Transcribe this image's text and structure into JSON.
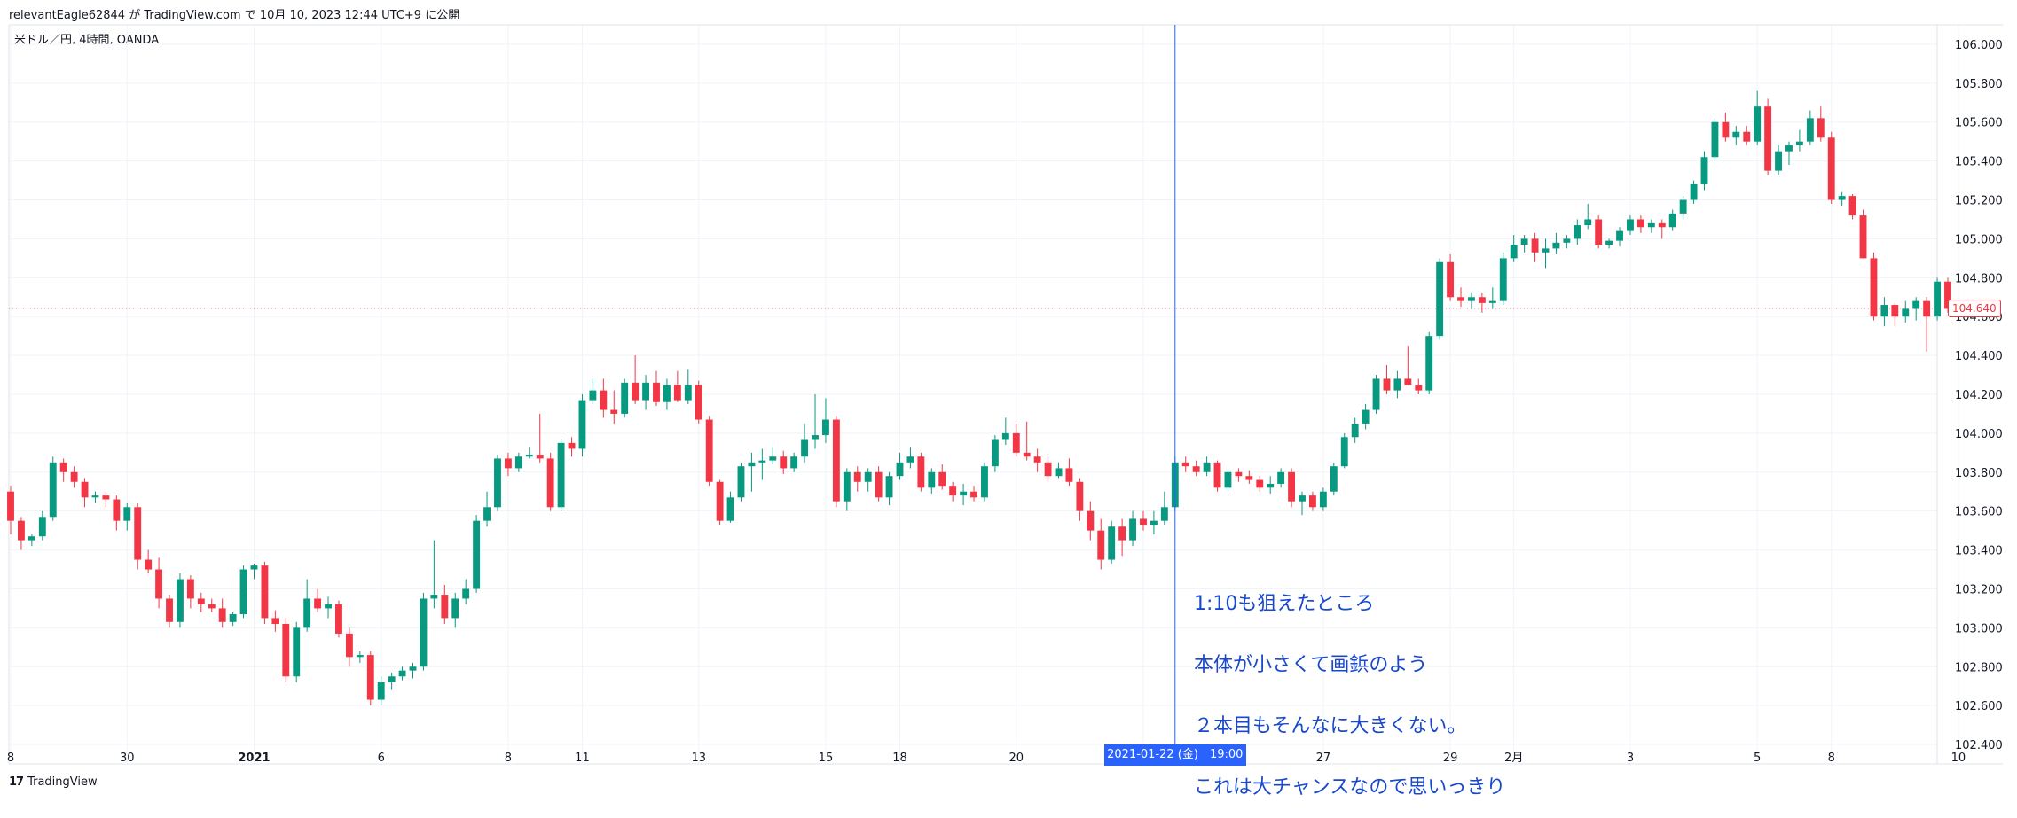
{
  "header": {
    "text": "relevantEagle62844 が TradingView.com で 10月 10, 2023 12:44 UTC+9 に公開"
  },
  "symbol": {
    "text": "米ドル／円, 4時間, OANDA"
  },
  "footer": {
    "brand": "TradingView",
    "logo_glyph": "17"
  },
  "annotation": {
    "lines": [
      "1:10も狙えたところ",
      "本体が小さくて画鋲のよう",
      "２本目もそんなに大きくない。",
      "これは大チャンスなので思いっきり"
    ],
    "color": "#1848cc"
  },
  "cursor": {
    "label": "2021-01-22 (金)　19:00"
  },
  "last_price": {
    "label": "104.640",
    "color": "#f23645"
  },
  "colors": {
    "up": "#089981",
    "down": "#f23645",
    "grid": "#f0f3fa",
    "cursor": "#2962ff"
  },
  "chart_data": {
    "type": "candlestick",
    "title": "",
    "y_axis": {
      "position": "right",
      "range": [
        102.3,
        106.1
      ],
      "tick_labels": [
        "106.000",
        "105.800",
        "105.600",
        "105.400",
        "105.200",
        "105.000",
        "104.800",
        "104.600",
        "104.400",
        "104.200",
        "104.000",
        "103.800",
        "103.600",
        "103.400",
        "103.200",
        "103.000",
        "102.800",
        "102.600",
        "102.400"
      ],
      "tick_values": [
        106.0,
        105.8,
        105.6,
        105.4,
        105.2,
        105.0,
        104.8,
        104.6,
        104.4,
        104.2,
        104.0,
        103.8,
        103.6,
        103.4,
        103.2,
        103.0,
        102.8,
        102.6,
        102.4
      ]
    },
    "x_axis": {
      "tick_labels": [
        "8",
        "30",
        "2021",
        "6",
        "8",
        "11",
        "13",
        "15",
        "18",
        "20",
        "22",
        "27",
        "29",
        "2月",
        "3",
        "5",
        "8",
        "10"
      ],
      "tick_bar_index": [
        0,
        11,
        23,
        35,
        47,
        54,
        65,
        77,
        84,
        95,
        107,
        124,
        136,
        142,
        153,
        165,
        172,
        184
      ],
      "bold_labels": [
        "2021"
      ]
    },
    "cursor_bar_index": 110,
    "grid": true,
    "ohlc": [
      [
        103.7,
        103.73,
        103.48,
        103.55
      ],
      [
        103.55,
        103.57,
        103.4,
        103.45
      ],
      [
        103.45,
        103.48,
        103.42,
        103.47
      ],
      [
        103.47,
        103.6,
        103.45,
        103.57
      ],
      [
        103.57,
        103.88,
        103.55,
        103.85
      ],
      [
        103.85,
        103.87,
        103.75,
        103.8
      ],
      [
        103.8,
        103.83,
        103.72,
        103.75
      ],
      [
        103.75,
        103.77,
        103.62,
        103.67
      ],
      [
        103.67,
        103.7,
        103.64,
        103.68
      ],
      [
        103.68,
        103.7,
        103.62,
        103.66
      ],
      [
        103.66,
        103.68,
        103.5,
        103.55
      ],
      [
        103.55,
        103.64,
        103.5,
        103.62
      ],
      [
        103.62,
        103.64,
        103.3,
        103.35
      ],
      [
        103.35,
        103.4,
        103.28,
        103.3
      ],
      [
        103.3,
        103.36,
        103.1,
        103.15
      ],
      [
        103.15,
        103.17,
        103.0,
        103.03
      ],
      [
        103.03,
        103.28,
        103.0,
        103.25
      ],
      [
        103.25,
        103.27,
        103.1,
        103.15
      ],
      [
        103.15,
        103.18,
        103.08,
        103.12
      ],
      [
        103.12,
        103.15,
        103.08,
        103.1
      ],
      [
        103.1,
        103.15,
        103.0,
        103.03
      ],
      [
        103.03,
        103.08,
        103.01,
        103.07
      ],
      [
        103.07,
        103.32,
        103.05,
        103.3
      ],
      [
        103.3,
        103.33,
        103.25,
        103.32
      ],
      [
        103.32,
        103.34,
        103.02,
        103.05
      ],
      [
        103.05,
        103.09,
        102.98,
        103.02
      ],
      [
        103.02,
        103.05,
        102.72,
        102.75
      ],
      [
        102.75,
        103.03,
        102.72,
        103.0
      ],
      [
        103.0,
        103.25,
        102.98,
        103.15
      ],
      [
        103.15,
        103.2,
        103.08,
        103.1
      ],
      [
        103.1,
        103.16,
        103.05,
        103.12
      ],
      [
        103.12,
        103.14,
        102.95,
        102.97
      ],
      [
        102.97,
        103.0,
        102.8,
        102.85
      ],
      [
        102.85,
        102.88,
        102.82,
        102.86
      ],
      [
        102.86,
        102.88,
        102.6,
        102.63
      ],
      [
        102.63,
        102.75,
        102.6,
        102.72
      ],
      [
        102.72,
        102.77,
        102.68,
        102.75
      ],
      [
        102.75,
        102.8,
        102.73,
        102.78
      ],
      [
        102.78,
        102.82,
        102.74,
        102.8
      ],
      [
        102.8,
        103.18,
        102.78,
        103.15
      ],
      [
        103.15,
        103.45,
        103.1,
        103.17
      ],
      [
        103.17,
        103.22,
        103.02,
        103.05
      ],
      [
        103.05,
        103.18,
        103.0,
        103.15
      ],
      [
        103.15,
        103.25,
        103.12,
        103.2
      ],
      [
        103.2,
        103.58,
        103.18,
        103.55
      ],
      [
        103.55,
        103.7,
        103.52,
        103.62
      ],
      [
        103.62,
        103.89,
        103.6,
        103.87
      ],
      [
        103.87,
        103.9,
        103.78,
        103.82
      ],
      [
        103.82,
        103.9,
        103.8,
        103.88
      ],
      [
        103.88,
        103.93,
        103.87,
        103.89
      ],
      [
        103.89,
        104.1,
        103.85,
        103.87
      ],
      [
        103.87,
        103.9,
        103.6,
        103.62
      ],
      [
        103.62,
        103.97,
        103.6,
        103.95
      ],
      [
        103.95,
        103.98,
        103.88,
        103.92
      ],
      [
        103.92,
        104.2,
        103.88,
        104.17
      ],
      [
        104.17,
        104.28,
        104.15,
        104.22
      ],
      [
        104.22,
        104.28,
        104.08,
        104.12
      ],
      [
        104.12,
        104.22,
        104.05,
        104.1
      ],
      [
        104.1,
        104.28,
        104.08,
        104.26
      ],
      [
        104.26,
        104.4,
        104.15,
        104.17
      ],
      [
        104.17,
        104.3,
        104.12,
        104.26
      ],
      [
        104.26,
        104.32,
        104.14,
        104.16
      ],
      [
        104.16,
        104.28,
        104.12,
        104.25
      ],
      [
        104.25,
        104.32,
        104.16,
        104.17
      ],
      [
        104.17,
        104.33,
        104.15,
        104.25
      ],
      [
        104.25,
        104.27,
        104.05,
        104.07
      ],
      [
        104.07,
        104.09,
        103.73,
        103.75
      ],
      [
        103.75,
        103.76,
        103.53,
        103.55
      ],
      [
        103.55,
        103.7,
        103.54,
        103.67
      ],
      [
        103.67,
        103.85,
        103.65,
        103.83
      ],
      [
        103.83,
        103.9,
        103.7,
        103.85
      ],
      [
        103.85,
        103.92,
        103.76,
        103.86
      ],
      [
        103.86,
        103.93,
        103.84,
        103.88
      ],
      [
        103.88,
        103.91,
        103.79,
        103.82
      ],
      [
        103.82,
        103.9,
        103.8,
        103.88
      ],
      [
        103.88,
        104.05,
        103.85,
        103.97
      ],
      [
        103.97,
        104.2,
        103.92,
        103.99
      ],
      [
        103.99,
        104.18,
        103.95,
        104.07
      ],
      [
        104.07,
        104.09,
        103.62,
        103.65
      ],
      [
        103.65,
        103.82,
        103.6,
        103.8
      ],
      [
        103.8,
        103.83,
        103.7,
        103.75
      ],
      [
        103.75,
        103.82,
        103.7,
        103.8
      ],
      [
        103.8,
        103.83,
        103.65,
        103.67
      ],
      [
        103.67,
        103.8,
        103.63,
        103.78
      ],
      [
        103.78,
        103.9,
        103.76,
        103.85
      ],
      [
        103.85,
        103.93,
        103.82,
        103.88
      ],
      [
        103.88,
        103.9,
        103.7,
        103.72
      ],
      [
        103.72,
        103.82,
        103.69,
        103.8
      ],
      [
        103.8,
        103.84,
        103.71,
        103.73
      ],
      [
        103.73,
        103.75,
        103.65,
        103.68
      ],
      [
        103.68,
        103.74,
        103.63,
        103.7
      ],
      [
        103.7,
        103.73,
        103.65,
        103.67
      ],
      [
        103.67,
        103.85,
        103.65,
        103.83
      ],
      [
        103.83,
        103.99,
        103.8,
        103.97
      ],
      [
        103.97,
        104.08,
        103.94,
        104.0
      ],
      [
        104.0,
        104.05,
        103.88,
        103.9
      ],
      [
        103.9,
        104.06,
        103.86,
        103.88
      ],
      [
        103.88,
        103.92,
        103.8,
        103.85
      ],
      [
        103.85,
        103.88,
        103.75,
        103.78
      ],
      [
        103.78,
        103.85,
        103.77,
        103.82
      ],
      [
        103.82,
        103.87,
        103.73,
        103.75
      ],
      [
        103.75,
        103.77,
        103.55,
        103.6
      ],
      [
        103.6,
        103.65,
        103.45,
        103.5
      ],
      [
        103.5,
        103.56,
        103.3,
        103.35
      ],
      [
        103.35,
        103.55,
        103.33,
        103.52
      ],
      [
        103.52,
        103.56,
        103.37,
        103.45
      ],
      [
        103.45,
        103.6,
        103.42,
        103.56
      ],
      [
        103.56,
        103.6,
        103.5,
        103.53
      ],
      [
        103.53,
        103.6,
        103.48,
        103.55
      ],
      [
        103.55,
        103.7,
        103.53,
        103.62
      ],
      [
        103.62,
        103.88,
        103.6,
        103.85
      ],
      [
        103.85,
        103.88,
        103.8,
        103.83
      ],
      [
        103.83,
        103.86,
        103.78,
        103.8
      ],
      [
        103.8,
        103.88,
        103.78,
        103.85
      ],
      [
        103.85,
        103.86,
        103.7,
        103.72
      ],
      [
        103.72,
        103.82,
        103.7,
        103.8
      ],
      [
        103.8,
        103.82,
        103.75,
        103.78
      ],
      [
        103.78,
        103.81,
        103.74,
        103.76
      ],
      [
        103.76,
        103.78,
        103.7,
        103.72
      ],
      [
        103.72,
        103.78,
        103.69,
        103.74
      ],
      [
        103.74,
        103.82,
        103.72,
        103.8
      ],
      [
        103.8,
        103.82,
        103.62,
        103.65
      ],
      [
        103.65,
        103.7,
        103.58,
        103.68
      ],
      [
        103.68,
        103.7,
        103.6,
        103.62
      ],
      [
        103.62,
        103.72,
        103.6,
        103.7
      ],
      [
        103.7,
        103.85,
        103.68,
        103.83
      ],
      [
        103.83,
        104.0,
        103.82,
        103.98
      ],
      [
        103.98,
        104.08,
        103.95,
        104.05
      ],
      [
        104.05,
        104.15,
        104.02,
        104.12
      ],
      [
        104.12,
        104.3,
        104.1,
        104.28
      ],
      [
        104.28,
        104.35,
        104.2,
        104.22
      ],
      [
        104.22,
        104.32,
        104.18,
        104.28
      ],
      [
        104.28,
        104.45,
        104.25,
        104.25
      ],
      [
        104.25,
        104.28,
        104.2,
        104.22
      ],
      [
        104.22,
        104.52,
        104.2,
        104.5
      ],
      [
        104.5,
        104.9,
        104.48,
        104.88
      ],
      [
        104.88,
        104.92,
        104.68,
        104.7
      ],
      [
        104.7,
        104.75,
        104.65,
        104.68
      ],
      [
        104.68,
        104.72,
        104.64,
        104.7
      ],
      [
        104.7,
        104.72,
        104.62,
        104.67
      ],
      [
        104.67,
        104.75,
        104.64,
        104.68
      ],
      [
        104.68,
        104.93,
        104.66,
        104.9
      ],
      [
        104.9,
        105.02,
        104.88,
        104.97
      ],
      [
        104.97,
        105.02,
        104.93,
        105.0
      ],
      [
        105.0,
        105.03,
        104.88,
        104.93
      ],
      [
        104.93,
        105.0,
        104.85,
        104.95
      ],
      [
        104.95,
        105.03,
        104.92,
        104.98
      ],
      [
        104.98,
        105.02,
        104.95,
        105.0
      ],
      [
        105.0,
        105.1,
        104.97,
        105.07
      ],
      [
        105.07,
        105.18,
        105.05,
        105.1
      ],
      [
        105.1,
        105.12,
        104.95,
        104.97
      ],
      [
        104.97,
        105.0,
        104.95,
        104.99
      ],
      [
        104.99,
        105.06,
        104.96,
        105.04
      ],
      [
        105.04,
        105.12,
        105.02,
        105.1
      ],
      [
        105.1,
        105.12,
        105.03,
        105.06
      ],
      [
        105.06,
        105.1,
        105.03,
        105.08
      ],
      [
        105.08,
        105.1,
        105.0,
        105.06
      ],
      [
        105.06,
        105.15,
        105.04,
        105.13
      ],
      [
        105.13,
        105.22,
        105.1,
        105.2
      ],
      [
        105.2,
        105.3,
        105.18,
        105.28
      ],
      [
        105.28,
        105.45,
        105.25,
        105.42
      ],
      [
        105.42,
        105.62,
        105.4,
        105.6
      ],
      [
        105.6,
        105.65,
        105.5,
        105.52
      ],
      [
        105.52,
        105.58,
        105.48,
        105.55
      ],
      [
        105.55,
        105.58,
        105.48,
        105.5
      ],
      [
        105.5,
        105.76,
        105.48,
        105.68
      ],
      [
        105.68,
        105.72,
        105.33,
        105.35
      ],
      [
        105.35,
        105.48,
        105.33,
        105.45
      ],
      [
        105.45,
        105.5,
        105.38,
        105.48
      ],
      [
        105.48,
        105.56,
        105.45,
        105.5
      ],
      [
        105.5,
        105.66,
        105.48,
        105.62
      ],
      [
        105.62,
        105.68,
        105.5,
        105.52
      ],
      [
        105.52,
        105.55,
        105.18,
        105.2
      ],
      [
        105.2,
        105.24,
        105.17,
        105.22
      ],
      [
        105.22,
        105.23,
        105.1,
        105.12
      ],
      [
        105.12,
        105.15,
        104.9,
        104.9
      ],
      [
        104.9,
        104.93,
        104.58,
        104.6
      ],
      [
        104.6,
        104.7,
        104.55,
        104.66
      ],
      [
        104.66,
        104.67,
        104.55,
        104.6
      ],
      [
        104.6,
        104.68,
        104.57,
        104.64
      ],
      [
        104.64,
        104.7,
        104.58,
        104.68
      ],
      [
        104.68,
        104.7,
        104.42,
        104.6
      ],
      [
        104.6,
        104.8,
        104.58,
        104.78
      ],
      [
        104.78,
        104.8,
        104.62,
        104.64
      ]
    ]
  }
}
